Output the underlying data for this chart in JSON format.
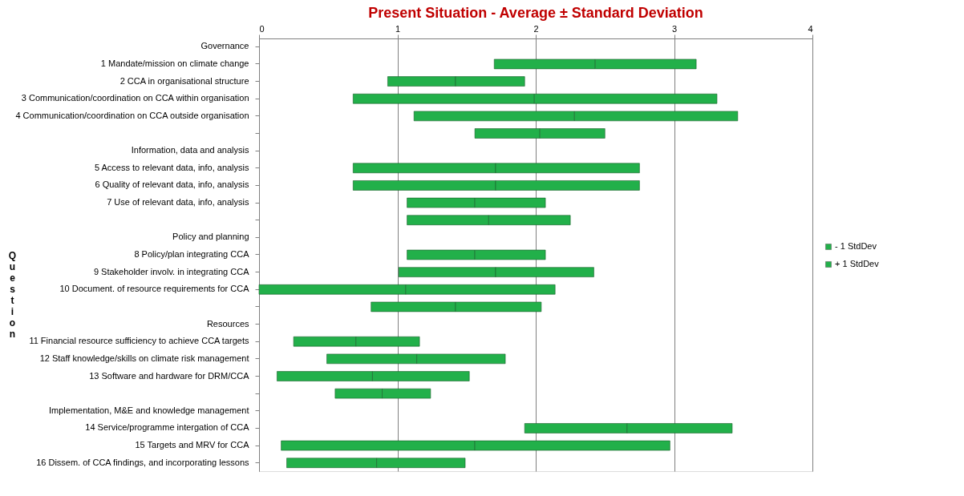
{
  "chart_data": {
    "type": "bar",
    "orientation": "horizontal",
    "title": "Present Situation - Average ± Standard Deviation",
    "ylabel": "Question",
    "categories": [
      "Governance",
      "1 Mandate/mission on climate change",
      "2 CCA in organisational structure",
      "3 Communication/coordination on CCA within organisation",
      "4 Communication/coordination on CCA outside organisation",
      null,
      "Information, data and analysis",
      "5 Access to relevant data, info, analysis",
      "6 Quality of relevant data, info, analysis",
      "7 Use of relevant data, info, analysis",
      null,
      "Policy and planning",
      "8 Policy/plan integrating CCA",
      "9 Stakeholder involv. in integrating CCA",
      "10 Document. of resource requirements for CCA",
      null,
      "Resources",
      "11 Financial resource sufficiency to achieve CCA targets",
      "12 Staff knowledge/skills on climate risk management",
      "13 Software and hardware for DRM/CCA",
      null,
      "Implementation, M&E and knowledge management",
      "14 Service/programme intergation of CCA",
      "15 Targets and MRV for CCA",
      "16 Dissem. of CCA findings, and incorporating lessons"
    ],
    "series": [
      {
        "name": "- 1 StdDev",
        "color": "#22b04a",
        "base": [
          null,
          1.7,
          0.93,
          0.68,
          1.12,
          1.56,
          null,
          0.68,
          0.68,
          1.07,
          1.07,
          null,
          1.07,
          1.01,
          0.0,
          0.81,
          null,
          0.25,
          0.49,
          0.13,
          0.55,
          null,
          1.92,
          0.16,
          0.2
        ],
        "values": [
          null,
          0.73,
          0.49,
          1.31,
          1.16,
          0.47,
          null,
          1.03,
          1.03,
          0.49,
          0.59,
          null,
          0.49,
          0.7,
          1.06,
          0.61,
          null,
          0.45,
          0.65,
          0.69,
          0.34,
          null,
          0.74,
          1.4,
          0.65
        ]
      },
      {
        "name": "+ 1 StdDev",
        "color": "#22b04a",
        "base": [
          null,
          2.43,
          1.42,
          1.99,
          2.28,
          2.03,
          null,
          1.71,
          1.71,
          1.56,
          1.66,
          null,
          1.56,
          1.71,
          1.06,
          1.42,
          null,
          0.7,
          1.14,
          0.82,
          0.89,
          null,
          2.66,
          1.56,
          0.85
        ],
        "values": [
          null,
          0.73,
          0.5,
          1.32,
          1.18,
          0.47,
          null,
          1.04,
          1.04,
          0.51,
          0.59,
          null,
          0.51,
          0.71,
          1.08,
          0.62,
          null,
          0.46,
          0.64,
          0.7,
          0.35,
          null,
          0.76,
          1.41,
          0.64
        ]
      }
    ],
    "xlim": [
      0,
      4
    ],
    "xticks": [
      0,
      1,
      2,
      3,
      4
    ],
    "grid": "x",
    "legend": "right"
  }
}
